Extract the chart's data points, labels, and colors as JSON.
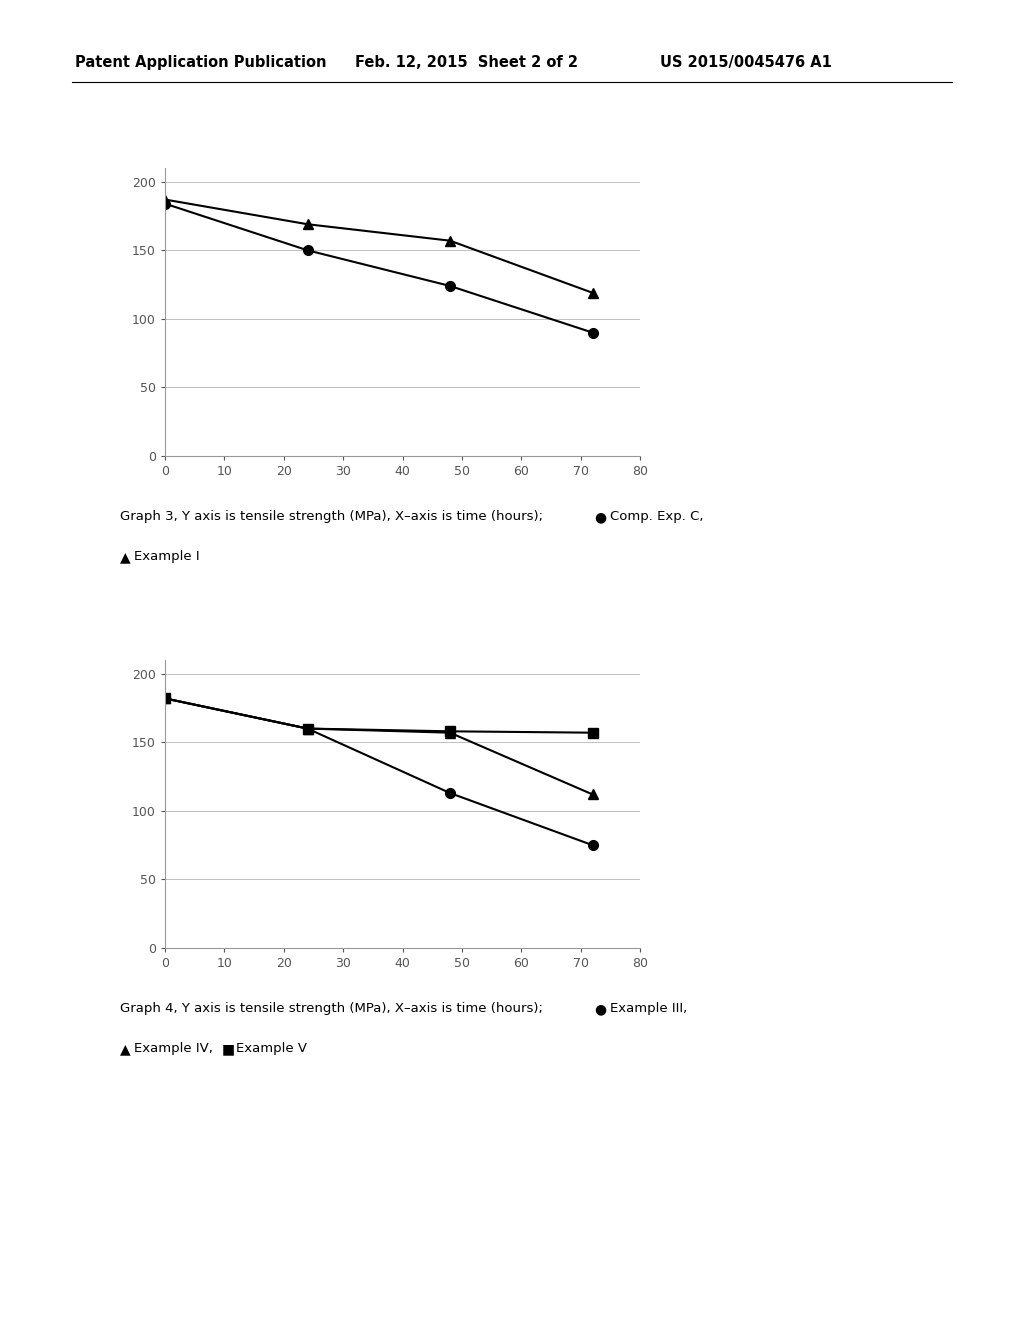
{
  "header_left": "Patent Application Publication",
  "header_mid": "Feb. 12, 2015  Sheet 2 of 2",
  "header_right": "US 2015/0045476 A1",
  "graph3": {
    "series": [
      {
        "label": "Comp. Exp. C",
        "marker": "circle",
        "x": [
          0,
          24,
          48,
          72
        ],
        "y": [
          184,
          150,
          124,
          90
        ]
      },
      {
        "label": "Example I",
        "marker": "triangle",
        "x": [
          0,
          24,
          48,
          72
        ],
        "y": [
          187,
          169,
          157,
          119
        ]
      }
    ],
    "xlim": [
      0,
      80
    ],
    "ylim": [
      0,
      210
    ],
    "yticks": [
      0,
      50,
      100,
      150,
      200
    ],
    "xticks": [
      0,
      10,
      20,
      30,
      40,
      50,
      60,
      70,
      80
    ],
    "cap1": "Graph 3, Y axis is tensile strength (MPa), X–axis is time (hours);",
    "cap1_sym": "●",
    "cap1_label": "Comp. Exp. C,",
    "cap2_sym": "▲",
    "cap2_label": "Example I"
  },
  "graph4": {
    "series": [
      {
        "label": "Example III",
        "marker": "circle",
        "x": [
          0,
          24,
          48,
          72
        ],
        "y": [
          182,
          160,
          113,
          75
        ]
      },
      {
        "label": "Example IV",
        "marker": "triangle",
        "x": [
          0,
          24,
          48,
          72
        ],
        "y": [
          182,
          160,
          157,
          112
        ]
      },
      {
        "label": "Example V",
        "marker": "square",
        "x": [
          0,
          24,
          48,
          72
        ],
        "y": [
          182,
          160,
          158,
          157
        ]
      }
    ],
    "xlim": [
      0,
      80
    ],
    "ylim": [
      0,
      210
    ],
    "yticks": [
      0,
      50,
      100,
      150,
      200
    ],
    "xticks": [
      0,
      10,
      20,
      30,
      40,
      50,
      60,
      70,
      80
    ],
    "cap1": "Graph 4, Y axis is tensile strength (MPa), X–axis is time (hours);",
    "cap1_sym": "●",
    "cap1_label": "Example III,",
    "cap2_sym": "▲",
    "cap2_label": "Example IV,",
    "cap3_sym": "■",
    "cap3_label": "Example V"
  },
  "line_color": "#000000",
  "marker_size": 7,
  "grid_color": "#c0c0c0",
  "background": "#ffffff",
  "font_family": "DejaVu Sans"
}
